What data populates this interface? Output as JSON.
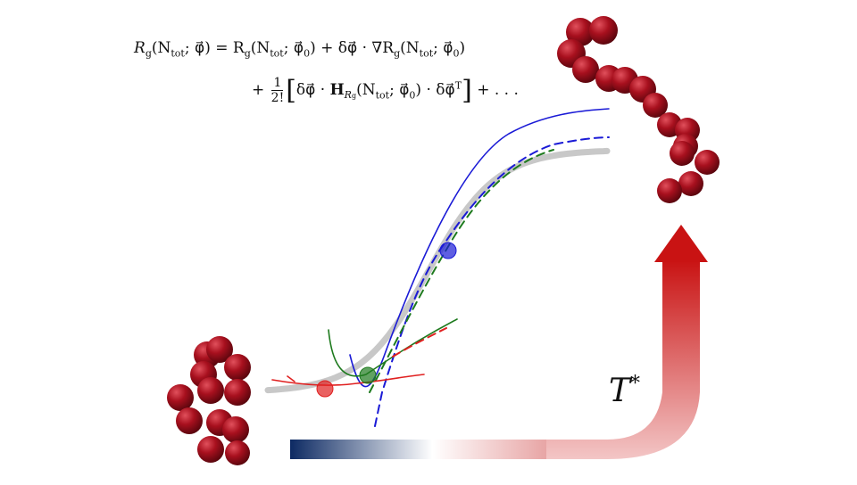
{
  "equation": {
    "line1_lhs": "R",
    "line1_lhs_sub": "g",
    "line1_lhs_args": "(N",
    "line1_lhs_args_sub": "tot",
    "line1_lhs_phi": "; φ⃗) = R",
    "line1_rhs_sub": "g",
    "line1_rhs_args": "(N",
    "line1_rhs_args_sub": "tot",
    "line1_rhs_phi0": "; φ⃗",
    "line1_rhs_phi0_sub": "0",
    "line1_rhs_tail": ") + δφ⃗ · ∇R",
    "line1_grad_sub": "g",
    "line1_grad_args": "(N",
    "line1_grad_args_sub": "tot",
    "line1_grad_phi0": "; φ⃗",
    "line1_grad_phi0_sub": "0",
    "line1_end": ")",
    "line2_plus": "+",
    "line2_frac_num": "1",
    "line2_frac_den": "2!",
    "line2_open": "[",
    "line2_body": "δφ⃗ · ",
    "line2_H": "H",
    "line2_H_sub": "R",
    "line2_H_subsub": "g",
    "line2_args": "(N",
    "line2_args_sub": "tot",
    "line2_phi0": "; φ⃗",
    "line2_phi0_sub": "0",
    "line2_after": ") · δφ⃗",
    "line2_T": "T",
    "line2_close": "]",
    "line2_tail": "+ . . ."
  },
  "temperature_label": "T",
  "temperature_sup": "*",
  "colors": {
    "reference_curve": "#c8c8c8",
    "blue": "#1a1ad6",
    "green": "#1e7a1e",
    "red": "#e02020",
    "bead": "#9b0f1a",
    "gradient_start": "#0d2a63",
    "gradient_end": "#d11c1c"
  },
  "expansion_points": [
    {
      "name": "red-expansion-point",
      "color": "red"
    },
    {
      "name": "green-expansion-point",
      "color": "green"
    },
    {
      "name": "blue-expansion-point",
      "color": "blue"
    }
  ]
}
